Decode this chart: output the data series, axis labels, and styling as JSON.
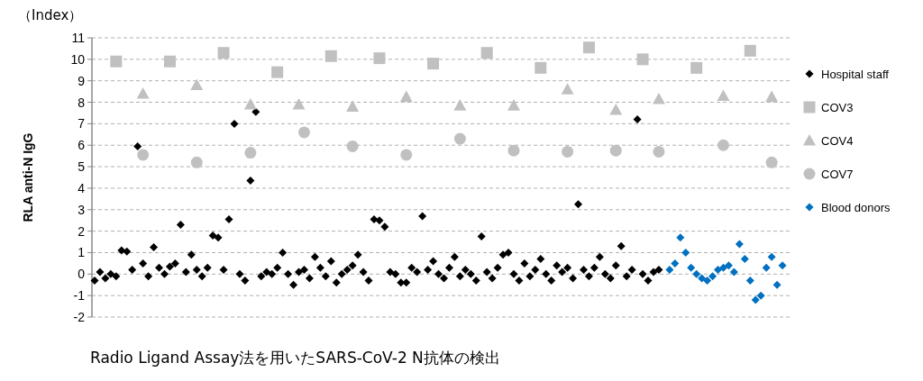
{
  "chart_data": {
    "type": "scatter",
    "ylabel": "RLA anti-N IgG",
    "annotations": [
      "（Index）",
      "Radio Ligand Assay法を用いたSARS-CoV-2 N抗体の検出"
    ],
    "categories": [
      null,
      null,
      null,
      null,
      null,
      null,
      null,
      null,
      null,
      null,
      null,
      null,
      null,
      null,
      null,
      null,
      null,
      null,
      null,
      null,
      null,
      null,
      null,
      null,
      null,
      null,
      null,
      null,
      null,
      null,
      null,
      null,
      null,
      null,
      null,
      null,
      null,
      null,
      null,
      null,
      null,
      null,
      null,
      null,
      null,
      null,
      null,
      null,
      null,
      null,
      null,
      null,
      null,
      null,
      null,
      null,
      null,
      null,
      null,
      null,
      null,
      null,
      null,
      null,
      null,
      null,
      null,
      null,
      null,
      null,
      null,
      null,
      null,
      null,
      null,
      null,
      null,
      null,
      null,
      null,
      null,
      null,
      null,
      null,
      null,
      null,
      null,
      null,
      null,
      null,
      null,
      null,
      null,
      null,
      null,
      null,
      null,
      null,
      null,
      null,
      null,
      null,
      null,
      null,
      null,
      null,
      null,
      null,
      null,
      null,
      null,
      null,
      null,
      null,
      null,
      null,
      null,
      null,
      null,
      null,
      null,
      null,
      null,
      null,
      null,
      null,
      null,
      null,
      null,
      null
    ],
    "ylim": [
      -2,
      11
    ],
    "yticks": [
      -2,
      -1,
      0,
      1,
      2,
      3,
      4,
      5,
      6,
      7,
      8,
      9,
      10,
      11
    ],
    "tick_labels": "y",
    "grid": "y",
    "legend": "right",
    "series": [
      {
        "name": "Hospital staff",
        "color": "#000000",
        "marker": "diamond",
        "values": [
          -0.3,
          0.1,
          -0.2,
          0.0,
          -0.1,
          1.1,
          1.05,
          0.2,
          5.95,
          0.5,
          -0.1,
          1.25,
          0.3,
          0.0,
          0.35,
          0.5,
          2.3,
          0.1,
          0.9,
          0.2,
          -0.1,
          0.3,
          1.8,
          1.7,
          0.2,
          2.55,
          7.0,
          0.0,
          -0.3,
          4.35,
          7.55,
          -0.1,
          0.1,
          0.0,
          0.3,
          1.0,
          0.0,
          -0.5,
          0.1,
          0.2,
          -0.2,
          0.8,
          0.3,
          -0.1,
          0.6,
          -0.4,
          0.0,
          0.2,
          0.4,
          0.9,
          0.1,
          -0.3,
          2.55,
          2.5,
          2.2,
          0.1,
          0.0,
          -0.4,
          -0.4,
          0.3,
          0.1,
          2.7,
          0.2,
          0.6,
          0.0,
          -0.2,
          0.3,
          0.8,
          -0.1,
          0.2,
          0.0,
          -0.3,
          1.75,
          0.1,
          -0.2,
          0.3,
          0.9,
          1.0,
          0.0,
          -0.3,
          0.5,
          -0.1,
          0.2,
          0.7,
          0.0,
          -0.3,
          0.4,
          0.1,
          0.3,
          -0.2,
          3.25,
          0.2,
          -0.1,
          0.3,
          0.8,
          0.0,
          -0.2,
          0.4,
          1.3,
          -0.1,
          0.2,
          7.2,
          0.0,
          -0.3,
          0.1,
          0.2,
          null,
          null,
          null,
          null,
          null,
          null,
          null,
          null,
          null,
          null,
          null,
          null,
          null,
          null,
          null,
          null,
          null,
          null,
          null,
          null,
          null,
          null,
          null,
          null
        ]
      },
      {
        "name": "COV3",
        "color": "#c0c0c0",
        "marker": "square",
        "values": [
          null,
          null,
          null,
          null,
          9.9,
          null,
          null,
          null,
          null,
          null,
          null,
          null,
          null,
          null,
          9.9,
          null,
          null,
          null,
          null,
          null,
          null,
          null,
          null,
          null,
          10.3,
          null,
          null,
          null,
          null,
          null,
          null,
          null,
          null,
          null,
          9.4,
          null,
          null,
          null,
          null,
          null,
          null,
          null,
          null,
          null,
          10.15,
          null,
          null,
          null,
          null,
          null,
          null,
          null,
          null,
          10.05,
          null,
          null,
          null,
          null,
          null,
          null,
          null,
          null,
          null,
          9.8,
          null,
          null,
          null,
          null,
          null,
          null,
          null,
          null,
          null,
          10.3,
          null,
          null,
          null,
          null,
          null,
          null,
          null,
          null,
          null,
          9.6,
          null,
          null,
          null,
          null,
          null,
          null,
          null,
          null,
          10.55,
          null,
          null,
          null,
          null,
          null,
          null,
          null,
          null,
          null,
          10.0,
          null,
          null,
          null,
          null,
          null,
          null,
          null,
          null,
          null,
          9.6,
          null,
          null,
          null,
          null,
          null,
          null,
          null,
          null,
          null,
          10.4,
          null,
          null,
          null,
          null,
          null,
          null,
          null
        ]
      },
      {
        "name": "COV4",
        "color": "#c0c0c0",
        "marker": "triangle",
        "values": [
          null,
          null,
          null,
          null,
          null,
          null,
          null,
          null,
          null,
          8.4,
          null,
          null,
          null,
          null,
          null,
          null,
          null,
          null,
          null,
          8.8,
          null,
          null,
          null,
          null,
          null,
          null,
          null,
          null,
          null,
          7.9,
          null,
          null,
          null,
          null,
          null,
          null,
          null,
          null,
          7.9,
          null,
          null,
          null,
          null,
          null,
          null,
          null,
          null,
          null,
          7.8,
          null,
          null,
          null,
          null,
          null,
          null,
          null,
          null,
          null,
          8.25,
          null,
          null,
          null,
          null,
          null,
          null,
          null,
          null,
          null,
          7.85,
          null,
          null,
          null,
          null,
          null,
          null,
          null,
          null,
          null,
          7.85,
          null,
          null,
          null,
          null,
          null,
          null,
          null,
          null,
          null,
          8.6,
          null,
          null,
          null,
          null,
          null,
          null,
          null,
          null,
          7.65,
          null,
          null,
          null,
          null,
          null,
          null,
          null,
          8.15,
          null,
          null,
          null,
          null,
          null,
          null,
          null,
          null,
          null,
          null,
          null,
          8.3,
          null,
          null,
          null,
          null,
          null,
          null,
          null,
          null,
          8.25,
          null,
          null,
          null
        ]
      },
      {
        "name": "COV7",
        "color": "#c0c0c0",
        "marker": "circle",
        "values": [
          null,
          null,
          null,
          null,
          null,
          null,
          null,
          null,
          null,
          5.55,
          null,
          null,
          null,
          null,
          null,
          null,
          null,
          null,
          null,
          5.2,
          null,
          null,
          null,
          null,
          null,
          null,
          null,
          null,
          null,
          5.65,
          null,
          null,
          null,
          null,
          null,
          null,
          null,
          null,
          null,
          6.6,
          null,
          null,
          null,
          null,
          null,
          null,
          null,
          null,
          5.95,
          null,
          null,
          null,
          null,
          null,
          null,
          null,
          null,
          null,
          5.55,
          null,
          null,
          null,
          null,
          null,
          null,
          null,
          null,
          null,
          6.3,
          null,
          null,
          null,
          null,
          null,
          null,
          null,
          null,
          null,
          5.75,
          null,
          null,
          null,
          null,
          null,
          null,
          null,
          null,
          null,
          5.7,
          null,
          null,
          null,
          null,
          null,
          null,
          null,
          null,
          5.75,
          null,
          null,
          null,
          null,
          null,
          null,
          null,
          5.7,
          null,
          null,
          null,
          null,
          null,
          null,
          null,
          null,
          null,
          null,
          null,
          6.0,
          null,
          null,
          null,
          null,
          null,
          null,
          null,
          null,
          5.2,
          null,
          null,
          null
        ]
      },
      {
        "name": "Blood donors",
        "color": "#0070c0",
        "marker": "diamond",
        "values": [
          null,
          null,
          null,
          null,
          null,
          null,
          null,
          null,
          null,
          null,
          null,
          null,
          null,
          null,
          null,
          null,
          null,
          null,
          null,
          null,
          null,
          null,
          null,
          null,
          null,
          null,
          null,
          null,
          null,
          null,
          null,
          null,
          null,
          null,
          null,
          null,
          null,
          null,
          null,
          null,
          null,
          null,
          null,
          null,
          null,
          null,
          null,
          null,
          null,
          null,
          null,
          null,
          null,
          null,
          null,
          null,
          null,
          null,
          null,
          null,
          null,
          null,
          null,
          null,
          null,
          null,
          null,
          null,
          null,
          null,
          null,
          null,
          null,
          null,
          null,
          null,
          null,
          null,
          null,
          null,
          null,
          null,
          null,
          null,
          null,
          null,
          null,
          null,
          null,
          null,
          null,
          null,
          null,
          null,
          null,
          null,
          null,
          null,
          null,
          null,
          null,
          null,
          null,
          null,
          null,
          null,
          null,
          0.2,
          0.5,
          1.7,
          1.0,
          0.3,
          0.0,
          -0.2,
          -0.3,
          -0.1,
          0.2,
          0.3,
          0.4,
          0.1,
          1.4,
          0.7,
          -0.3,
          -1.2,
          -1.0,
          0.3,
          0.8,
          -0.5,
          0.4,
          null
        ]
      }
    ]
  }
}
